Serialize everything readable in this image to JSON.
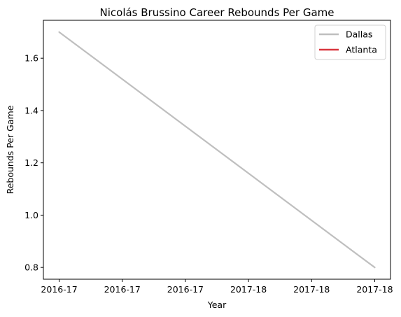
{
  "chart_data": {
    "type": "line",
    "title": "Nicolás Brussino Career Rebounds Per Game",
    "xlabel": "Year",
    "ylabel": "Rebounds Per Game",
    "x_tick_labels": [
      "2016-17",
      "2016-17",
      "2016-17",
      "2017-18",
      "2017-18",
      "2017-18"
    ],
    "y_ticks": [
      0.8,
      1.0,
      1.2,
      1.4,
      1.6
    ],
    "y_tick_labels": [
      "0.8",
      "1.0",
      "1.2",
      "1.4",
      "1.6"
    ],
    "ylim": [
      0.755,
      1.745
    ],
    "xlim": [
      -0.05,
      1.05
    ],
    "grid": false,
    "legend_position": "top-right",
    "series": [
      {
        "name": "Dallas",
        "color": "#bfbfbf",
        "x": [
          0,
          1
        ],
        "x_labels": [
          "2016-17",
          "2017-18"
        ],
        "values": [
          1.7,
          0.8
        ]
      },
      {
        "name": "Atlanta",
        "color": "#d9363e",
        "x": [],
        "x_labels": [],
        "values": []
      }
    ]
  }
}
